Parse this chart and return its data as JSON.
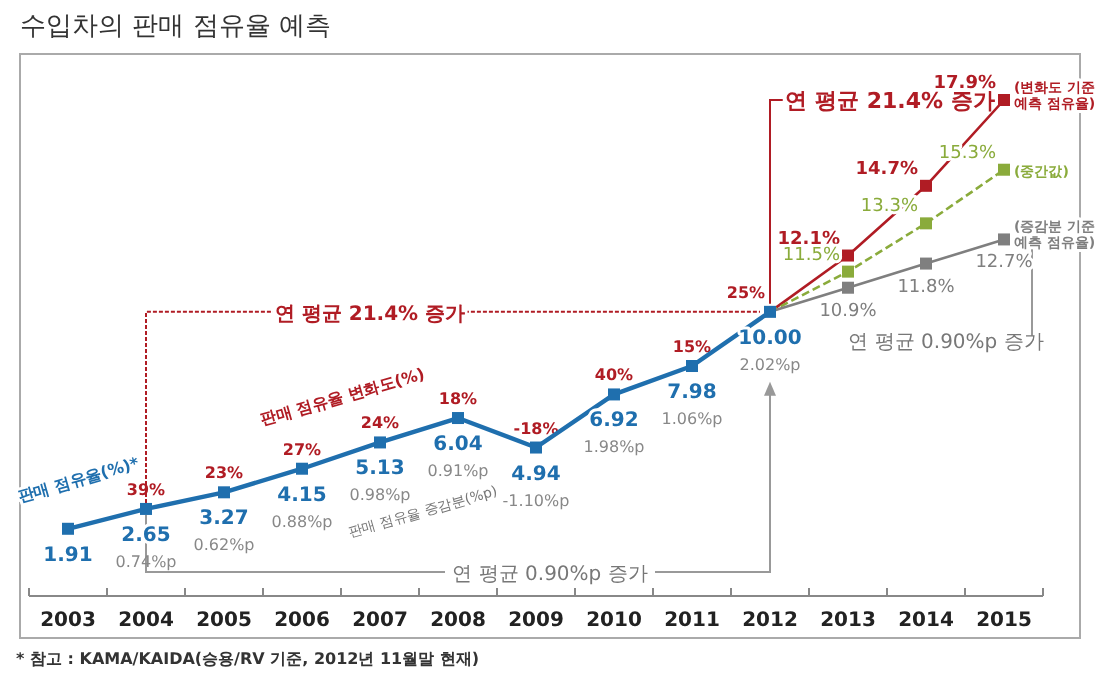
{
  "chart_data": {
    "type": "line",
    "title": "수입차의 판매 점유율 예측",
    "categories": [
      "2003",
      "2004",
      "2005",
      "2006",
      "2007",
      "2008",
      "2009",
      "2010",
      "2011",
      "2012",
      "2013",
      "2014",
      "2015"
    ],
    "marker": "square",
    "series": [
      {
        "name": "판매 점유율(%)*",
        "color": "#1f6fae",
        "values": [
          1.91,
          2.65,
          3.27,
          4.15,
          5.13,
          6.04,
          4.94,
          6.92,
          7.98,
          10.0,
          null,
          null,
          null
        ],
        "value_labels": [
          "1.91",
          "2.65",
          "3.27",
          "4.15",
          "5.13",
          "6.04",
          "4.94",
          "6.92",
          "7.98",
          "10.00",
          null,
          null,
          null
        ]
      },
      {
        "name": "(변화도 기준 예측 점유율)",
        "color": "#b01c24",
        "values": [
          null,
          null,
          null,
          null,
          null,
          null,
          null,
          null,
          null,
          10.0,
          12.1,
          14.7,
          17.9
        ],
        "value_labels": [
          null,
          null,
          null,
          null,
          null,
          null,
          null,
          null,
          null,
          null,
          "12.1%",
          "14.7%",
          "17.9%"
        ]
      },
      {
        "name": "(중간값)",
        "color": "#8aab3b",
        "line_style": "dashed",
        "values": [
          null,
          null,
          null,
          null,
          null,
          null,
          null,
          null,
          null,
          10.0,
          11.5,
          13.3,
          15.3
        ],
        "value_labels": [
          null,
          null,
          null,
          null,
          null,
          null,
          null,
          null,
          null,
          null,
          "11.5%",
          "13.3%",
          "15.3%"
        ]
      },
      {
        "name": "(증감분 기준 예측 점유율)",
        "color": "#7f7f7f",
        "values": [
          null,
          null,
          null,
          null,
          null,
          null,
          null,
          null,
          null,
          10.0,
          10.9,
          11.8,
          12.7
        ],
        "value_labels": [
          null,
          null,
          null,
          null,
          null,
          null,
          null,
          null,
          null,
          null,
          "10.9%",
          "11.8%",
          "12.7%"
        ]
      }
    ],
    "annotations": [
      "연 평균 21.4% 증가",
      "연 평균 0.90%p 증가",
      "연 평균 21.4% 증가",
      "연 평균 0.90%p 증가",
      "판매 점유율 변화도(%)",
      "판매 점유율 증감분(%p)",
      "* 참고 : KAMA/KAIDA(승용/RV 기준, 2012년 11월말 현재)",
      {
        "text": "39%",
        "x": "2004",
        "y": 2.65
      },
      {
        "text": "0.74%p",
        "x": "2004",
        "y": 2.65
      },
      {
        "text": "23%",
        "x": "2005",
        "y": 3.27
      },
      {
        "text": "0.62%p",
        "x": "2005",
        "y": 3.27
      },
      {
        "text": "27%",
        "x": "2006",
        "y": 4.15
      },
      {
        "text": "0.88%p",
        "x": "2006",
        "y": 4.15
      },
      {
        "text": "24%",
        "x": "2007",
        "y": 5.13
      },
      {
        "text": "0.98%p",
        "x": "2007",
        "y": 5.13
      },
      {
        "text": "18%",
        "x": "2008",
        "y": 6.04
      },
      {
        "text": "0.91%p",
        "x": "2008",
        "y": 6.04
      },
      {
        "text": "-18%",
        "x": "2009",
        "y": 4.94
      },
      {
        "text": "-1.10%p",
        "x": "2009",
        "y": 4.94
      },
      {
        "text": "40%",
        "x": "2010",
        "y": 6.92
      },
      {
        "text": "1.98%p",
        "x": "2010",
        "y": 6.92
      },
      {
        "text": "15%",
        "x": "2011",
        "y": 7.98
      },
      {
        "text": "1.06%p",
        "x": "2011",
        "y": 7.98
      },
      {
        "text": "25%",
        "x": "2012",
        "y": 10.0
      },
      {
        "text": "2.02%p",
        "x": "2012",
        "y": 10.0
      }
    ]
  }
}
